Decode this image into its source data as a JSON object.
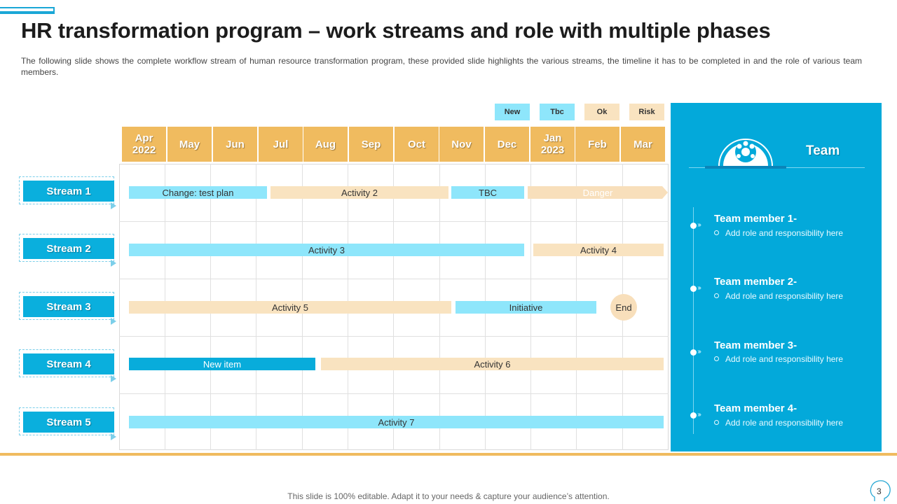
{
  "title": "HR transformation program – work streams and role with multiple phases",
  "subtitle": "The following slide shows the complete workflow stream of human resource transformation program, these provided slide highlights the various streams, the timeline it has to be completed in and the role of various team members.",
  "legend": [
    {
      "label": "New",
      "color": "#8ee6fb"
    },
    {
      "label": "Tbc",
      "color": "#8ee6fb"
    },
    {
      "label": "Ok",
      "color": "#f9e3c0"
    },
    {
      "label": "Risk",
      "color": "#f9e3c0"
    }
  ],
  "months": [
    "Apr 2022",
    "May",
    "Jun",
    "Jul",
    "Aug",
    "Sep",
    "Oct",
    "Nov",
    "Dec",
    "Jan 2023",
    "Feb",
    "Mar"
  ],
  "streams": [
    "Stream 1",
    "Stream 2",
    "Stream 3",
    "Stream 4",
    "Stream 5"
  ],
  "bars": {
    "s1_change": "Change:  test plan",
    "s1_activity2": "Activity 2",
    "s1_tbc": "TBC",
    "s1_danger": "Danger",
    "s2_activity3": "Activity 3",
    "s2_activity4": "Activity 4",
    "s3_activity5": "Activity 5",
    "s3_initiative": "Initiative",
    "s3_end": "End",
    "s4_newitem": "New item",
    "s4_activity6": "Activity 6",
    "s5_activity7": "Activity 7"
  },
  "team": {
    "title": "Team",
    "members": [
      {
        "name": "Team member 1-",
        "role": "Add role and responsibility here"
      },
      {
        "name": "Team member 2-",
        "role": "Add role and responsibility here"
      },
      {
        "name": "Team member 3-",
        "role": "Add role and responsibility here"
      },
      {
        "name": "Team member 4-",
        "role": "Add role and responsibility here"
      }
    ]
  },
  "footer": "This slide is 100% editable. Adapt it to your needs & capture your audience’s attention.",
  "page_number": "3",
  "colors": {
    "accent": "#03a9da",
    "gold": "#f0bb5f",
    "light_blue": "#8ee6fb",
    "peach": "#f9e3c0"
  }
}
